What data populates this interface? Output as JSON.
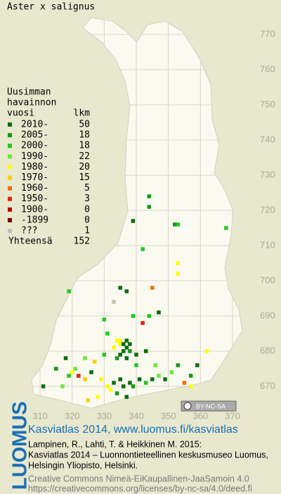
{
  "title": "Aster x salignus",
  "legend": {
    "heading": [
      "Uusimman",
      "havainnon",
      "vuosi"
    ],
    "count_heading": "lkm",
    "rows": [
      {
        "label": "2010-",
        "count": 50,
        "color": "#0b6a0b"
      },
      {
        "label": "2005-",
        "count": 18,
        "color": "#179617"
      },
      {
        "label": "2000-",
        "count": 18,
        "color": "#22c822"
      },
      {
        "label": "1990-",
        "count": 22,
        "color": "#6ee83a"
      },
      {
        "label": "1980-",
        "count": 20,
        "color": "#ffff00"
      },
      {
        "label": "1970-",
        "count": 15,
        "color": "#ffcc00"
      },
      {
        "label": "1960-",
        "count": 5,
        "color": "#ff6a00"
      },
      {
        "label": "1950-",
        "count": 3,
        "color": "#e82000"
      },
      {
        "label": "1900-",
        "count": 0,
        "color": "#b80000"
      },
      {
        "label": "-1899",
        "count": 0,
        "color": "#7a0000"
      },
      {
        "label": "???",
        "count": 1,
        "color": "#c0c0c0"
      }
    ],
    "total_label": "Yhteensä",
    "total": 152
  },
  "map": {
    "xlim": [
      310,
      370
    ],
    "ylim": [
      670,
      770
    ],
    "xticks": [
      310,
      320,
      330,
      340,
      350,
      360,
      370
    ],
    "yticks": [
      670,
      680,
      690,
      700,
      710,
      720,
      730,
      740,
      750,
      760,
      770
    ],
    "squares": [
      [
        368,
        715,
        "2000-"
      ],
      [
        344,
        724,
        "2005-"
      ],
      [
        344,
        721,
        "2005-"
      ],
      [
        339,
        717,
        "2010-"
      ],
      [
        352,
        716,
        "2005-"
      ],
      [
        353,
        716,
        "2000-"
      ],
      [
        342,
        709,
        "2000-"
      ],
      [
        353,
        705,
        "1980-"
      ],
      [
        353,
        702,
        "1980-"
      ],
      [
        335,
        698,
        "2010-"
      ],
      [
        337,
        697,
        "2010-"
      ],
      [
        345,
        698,
        "1960-"
      ],
      [
        319,
        697,
        "2000-"
      ],
      [
        333,
        694,
        "???"
      ],
      [
        347,
        691,
        "2010-"
      ],
      [
        344,
        690,
        "2000-"
      ],
      [
        342,
        688,
        "1950-"
      ],
      [
        339,
        690,
        "2000-"
      ],
      [
        330,
        689,
        "2000-"
      ],
      [
        335,
        683,
        "1980-"
      ],
      [
        334,
        683,
        "1980-"
      ],
      [
        335,
        682,
        "1980-"
      ],
      [
        333,
        681,
        "1980-"
      ],
      [
        336,
        682,
        "2010-"
      ],
      [
        337,
        683,
        "2010-"
      ],
      [
        338,
        682,
        "2010-"
      ],
      [
        337,
        681,
        "2010-"
      ],
      [
        336,
        680,
        "2010-"
      ],
      [
        338,
        680,
        "2005-"
      ],
      [
        335,
        679,
        "2010-"
      ],
      [
        337,
        678,
        "2010-"
      ],
      [
        334,
        678,
        "2005-"
      ],
      [
        340,
        679,
        "2010-"
      ],
      [
        330,
        679,
        "2000-"
      ],
      [
        327,
        677,
        "1970-"
      ],
      [
        324,
        678,
        "1990-"
      ],
      [
        318,
        678,
        "2010-"
      ],
      [
        321,
        675,
        "1990-"
      ],
      [
        315,
        675,
        "2005-"
      ],
      [
        322,
        673,
        "1950-"
      ],
      [
        324,
        672,
        "1970-"
      ],
      [
        326,
        674,
        "2010-"
      ],
      [
        329,
        672,
        "1980-"
      ],
      [
        331,
        670,
        "1980-"
      ],
      [
        332,
        669,
        "1980-"
      ],
      [
        333,
        671,
        "2010-"
      ],
      [
        335,
        672,
        "2010-"
      ],
      [
        336,
        670,
        "2010-"
      ],
      [
        338,
        671,
        "2010-"
      ],
      [
        339,
        670,
        "2005-"
      ],
      [
        341,
        672,
        "2010-"
      ],
      [
        343,
        671,
        "2000-"
      ],
      [
        345,
        672,
        "2010-"
      ],
      [
        347,
        673,
        "1990-"
      ],
      [
        349,
        672,
        "2010-"
      ],
      [
        351,
        674,
        "1990-"
      ],
      [
        353,
        676,
        "2005-"
      ],
      [
        355,
        671,
        "1960-"
      ],
      [
        357,
        670,
        "1980-"
      ],
      [
        359,
        676,
        "2010-"
      ],
      [
        362,
        680,
        "1980-"
      ],
      [
        357,
        673,
        "2005-"
      ],
      [
        311,
        670,
        "2010-"
      ],
      [
        320,
        674,
        "1980-"
      ],
      [
        328,
        667,
        "1980-"
      ],
      [
        325,
        666,
        "1970-"
      ],
      [
        334,
        668,
        "2005-"
      ],
      [
        337,
        667,
        "2010-"
      ],
      [
        340,
        676,
        "2000-"
      ],
      [
        346,
        676,
        "1990-"
      ],
      [
        343,
        680,
        "2010-"
      ],
      [
        331,
        685,
        "2000-"
      ],
      [
        319,
        673,
        "2000-"
      ],
      [
        317,
        670,
        "1990-"
      ]
    ]
  },
  "license_badge": "BY-NC-SA",
  "footer": {
    "logo": "LUOMUS",
    "headline": "Kasviatlas 2014, www.luomus.fi/kasviatlas",
    "citation": [
      "Lampinen, R., Lahti, T. & Heikkinen M. 2015:",
      "Kasviatlas 2014 – Luonnontieteellinen keskusmuseo Luomus,",
      "Helsingin Yliopisto, Helsinki."
    ],
    "license": [
      "Creative Commons Nimeä-EiKaupallinen-JaaSamoin 4.0",
      "https://creativecommons.org/licenses/by-nc-sa/4.0/deed.fi"
    ]
  }
}
